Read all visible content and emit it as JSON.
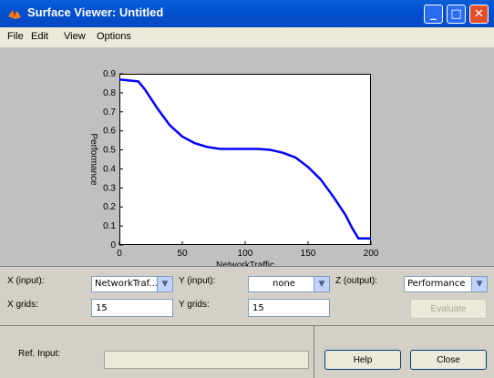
{
  "window": {
    "title": "Surface Viewer: Untitled",
    "app_icon": "matlab-icon"
  },
  "menu": {
    "items": [
      "File",
      "Edit",
      "View",
      "Options"
    ]
  },
  "chart_data": {
    "type": "line",
    "xlabel": "NetworkTraffic",
    "ylabel": "Performance",
    "xlim": [
      0,
      200
    ],
    "ylim": [
      0,
      0.9
    ],
    "x_ticks": [
      "0",
      "50",
      "100",
      "150",
      "200"
    ],
    "y_ticks": [
      "0",
      "0.1",
      "0.2",
      "0.3",
      "0.4",
      "0.5",
      "0.6",
      "0.7",
      "0.8",
      "0.9"
    ],
    "line_color": "#0000ff",
    "grid": false,
    "series": [
      {
        "x": [
          0,
          15,
          20,
          30,
          40,
          50,
          60,
          70,
          80,
          90,
          100,
          110,
          120,
          130,
          140,
          150,
          160,
          170,
          180,
          185,
          190,
          200
        ],
        "y": [
          0.87,
          0.86,
          0.82,
          0.72,
          0.63,
          0.57,
          0.535,
          0.515,
          0.505,
          0.505,
          0.505,
          0.505,
          0.5,
          0.485,
          0.46,
          0.41,
          0.345,
          0.255,
          0.155,
          0.09,
          0.035,
          0.035
        ]
      }
    ]
  },
  "controls": {
    "x_input_label": "X (input):",
    "x_input_value": "NetworkTraf...",
    "y_input_label": "Y (input):",
    "y_input_value": "none",
    "z_output_label": "Z (output):",
    "z_output_value": "Performance",
    "x_grids_label": "X grids:",
    "x_grids_value": "15",
    "y_grids_label": "Y grids:",
    "y_grids_value": "15",
    "evaluate_label": "Evaluate",
    "ref_input_label": "Ref. Input:",
    "ref_input_value": "",
    "help_label": "Help",
    "close_label": "Close"
  }
}
